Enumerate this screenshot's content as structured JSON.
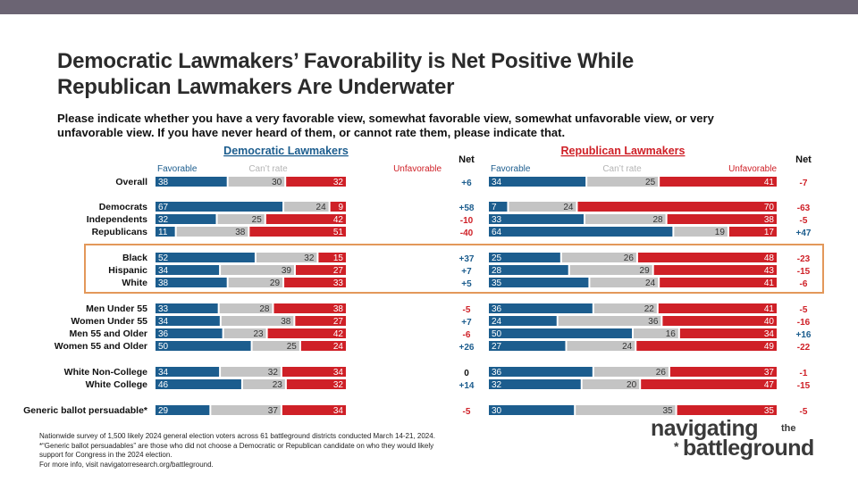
{
  "title_line1": "Democratic Lawmakers’ Favorability is Net Positive While",
  "title_line2": "Republican Lawmakers Are Underwater",
  "subtitle_line1": "Please indicate whether you have a very favorable view, somewhat favorable view, somewhat unfavorable view, or very",
  "subtitle_line2": "unfavorable view. If you have never heard of them, or cannot rate them, please indicate that.",
  "colors": {
    "favorable": "#1c5d8e",
    "cantrate": "#c4c4c4",
    "unfavorable": "#cf2027",
    "dem_header": "#1c5d8e",
    "rep_header": "#cf2027",
    "highlight": "#e3985a",
    "text": "#111111"
  },
  "chart_data": {
    "type": "bar",
    "stacked": true,
    "orientation": "horizontal",
    "legend_labels": {
      "favorable": "Favorable",
      "cantrate": "Can’t rate",
      "unfavorable": "Unfavorable"
    },
    "net_label": "Net",
    "panels": [
      {
        "name": "Democratic Lawmakers",
        "rows": [
          [
            38,
            30,
            32
          ],
          [
            67,
            24,
            9
          ],
          [
            32,
            25,
            42
          ],
          [
            11,
            38,
            51
          ],
          [
            52,
            32,
            15
          ],
          [
            34,
            39,
            27
          ],
          [
            38,
            29,
            33
          ],
          [
            33,
            28,
            38
          ],
          [
            34,
            38,
            27
          ],
          [
            36,
            23,
            42
          ],
          [
            50,
            25,
            24
          ],
          [
            34,
            32,
            34
          ],
          [
            46,
            23,
            32
          ],
          [
            29,
            37,
            34
          ]
        ],
        "net": [
          "+6",
          "+58",
          "-10",
          "-40",
          "+37",
          "+7",
          "+5",
          "-5",
          "+7",
          "-6",
          "+26",
          "0",
          "+14",
          "-5"
        ]
      },
      {
        "name": "Republican Lawmakers",
        "rows": [
          [
            34,
            25,
            41
          ],
          [
            7,
            24,
            70
          ],
          [
            33,
            28,
            38
          ],
          [
            64,
            19,
            17
          ],
          [
            25,
            26,
            48
          ],
          [
            28,
            29,
            43
          ],
          [
            35,
            24,
            41
          ],
          [
            36,
            22,
            41
          ],
          [
            24,
            36,
            40
          ],
          [
            50,
            16,
            34
          ],
          [
            27,
            24,
            49
          ],
          [
            36,
            26,
            37
          ],
          [
            32,
            20,
            47
          ],
          [
            30,
            35,
            35
          ]
        ],
        "net": [
          "-7",
          "-63",
          "-5",
          "+47",
          "-23",
          "-15",
          "-6",
          "-5",
          "-16",
          "+16",
          "-22",
          "-1",
          "-15",
          "-5"
        ]
      }
    ],
    "categories": [
      "Overall",
      "Democrats",
      "Independents",
      "Republicans",
      "Black",
      "Hispanic",
      "White",
      "Men Under 55",
      "Women Under 55",
      "Men 55 and Older",
      "Women 55 and Older",
      "White Non-College",
      "White College",
      "Generic ballot persuadable*"
    ],
    "highlighted_rows": [
      4,
      5,
      6
    ]
  },
  "footnotes": [
    "Nationwide survey of 1,500 likely 2024 general election voters across 61 battleground districts conducted March 14-21, 2024.",
    "*“Generic ballot persuadables” are those who did not choose a Democratic or Republican candidate on who they would likely",
    "support for Congress in the 2024 election.",
    "For more info, visit navigatorresearch.org/battleground."
  ],
  "logo": {
    "line1": "navigating",
    "the": "the",
    "star": "*",
    "line2": "battleground"
  }
}
